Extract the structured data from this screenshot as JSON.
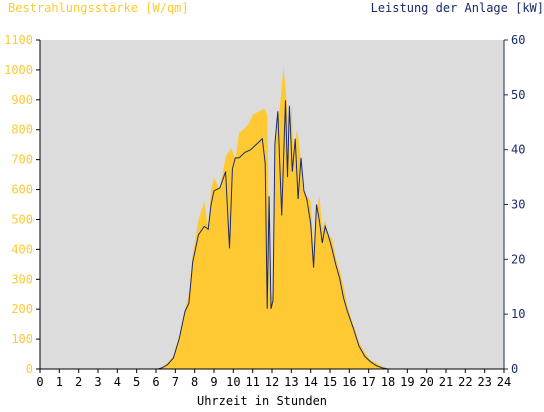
{
  "chart_data": {
    "type": "area",
    "title": "",
    "left_axis_label": "Bestrahlungsstärke [W/qm]",
    "right_axis_label": "Leistung der Anlage [kW]",
    "xlabel": "Uhrzeit in Stunden",
    "xlim": [
      0,
      24
    ],
    "ylim_left": [
      0,
      1100
    ],
    "ylim_right": [
      0,
      60
    ],
    "x_ticks": [
      "0",
      "1",
      "2",
      "3",
      "4",
      "5",
      "6",
      "7",
      "8",
      "9",
      "10",
      "11",
      "12",
      "13",
      "14",
      "15",
      "16",
      "17",
      "18",
      "19",
      "20",
      "21",
      "22",
      "23",
      "24"
    ],
    "y_ticks_left": [
      "0",
      "100",
      "200",
      "300",
      "400",
      "500",
      "600",
      "700",
      "800",
      "900",
      "1000",
      "1100"
    ],
    "y_ticks_right": [
      "0",
      "10",
      "20",
      "30",
      "40",
      "50",
      "60"
    ],
    "grid": false,
    "colors": {
      "background": "#dcdcdc",
      "irradiance_fill": "#ffc933",
      "power_line": "#1a2a6c",
      "left_axis_text": "#ffc933",
      "right_axis_text": "#1a2a6c",
      "axis": "#000000"
    },
    "series": [
      {
        "name": "Bestrahlungsstärke",
        "axis": "left",
        "style": "area",
        "x": [
          0,
          6.1,
          6.3,
          6.6,
          6.9,
          7.2,
          7.5,
          7.7,
          7.9,
          8.2,
          8.5,
          8.7,
          8.85,
          9.0,
          9.3,
          9.6,
          9.9,
          10.1,
          10.3,
          10.5,
          10.8,
          11.0,
          11.3,
          11.6,
          11.75,
          11.9,
          12.05,
          12.2,
          12.4,
          12.6,
          12.8,
          12.9,
          13.0,
          13.1,
          13.3,
          13.45,
          13.6,
          13.8,
          14.0,
          14.15,
          14.3,
          14.45,
          14.6,
          14.75,
          14.9,
          15.1,
          15.3,
          15.5,
          15.7,
          15.9,
          16.2,
          16.5,
          16.8,
          17.1,
          17.4,
          17.7,
          18.0,
          18.3,
          18.6,
          18.8,
          24
        ],
        "values": [
          0,
          0,
          5,
          20,
          45,
          110,
          200,
          250,
          380,
          500,
          560,
          470,
          600,
          640,
          600,
          710,
          740,
          700,
          790,
          800,
          820,
          850,
          860,
          870,
          850,
          260,
          240,
          800,
          870,
          1010,
          860,
          700,
          900,
          720,
          800,
          730,
          600,
          580,
          560,
          400,
          520,
          580,
          470,
          500,
          440,
          440,
          370,
          330,
          280,
          210,
          150,
          90,
          55,
          30,
          20,
          8,
          3,
          0,
          0,
          0,
          0
        ]
      },
      {
        "name": "Leistung der Anlage",
        "axis": "right",
        "style": "line",
        "x": [
          0,
          6.1,
          6.3,
          6.6,
          6.9,
          7.2,
          7.5,
          7.7,
          7.9,
          8.2,
          8.5,
          8.7,
          8.85,
          9.0,
          9.3,
          9.6,
          9.8,
          9.95,
          10.1,
          10.3,
          10.6,
          10.9,
          11.2,
          11.5,
          11.65,
          11.75,
          11.85,
          11.95,
          12.05,
          12.15,
          12.3,
          12.5,
          12.7,
          12.8,
          12.9,
          13.05,
          13.2,
          13.35,
          13.5,
          13.65,
          13.8,
          14.0,
          14.15,
          14.3,
          14.45,
          14.6,
          14.75,
          14.9,
          15.1,
          15.3,
          15.5,
          15.7,
          15.9,
          16.2,
          16.5,
          16.8,
          17.1,
          17.4,
          17.7,
          18.0,
          18.3,
          18.6,
          24
        ],
        "values": [
          0,
          0,
          0.2,
          0.8,
          2.0,
          5.5,
          10.5,
          12.0,
          19.5,
          24.5,
          26.0,
          25.5,
          30.0,
          32.5,
          33.0,
          36.0,
          22.0,
          36.5,
          38.5,
          38.5,
          39.5,
          40.0,
          41.0,
          42.0,
          37.5,
          11.0,
          31.5,
          11.0,
          12.5,
          41.0,
          47.0,
          28.0,
          49.0,
          35.0,
          48.0,
          36.0,
          42.0,
          31.0,
          38.5,
          32.5,
          31.0,
          26.5,
          18.5,
          30.0,
          27.0,
          23.0,
          26.0,
          24.5,
          22.0,
          19.0,
          16.5,
          13.0,
          10.5,
          7.5,
          4.2,
          2.3,
          1.3,
          0.6,
          0.2,
          0,
          0,
          0,
          0
        ]
      }
    ]
  }
}
